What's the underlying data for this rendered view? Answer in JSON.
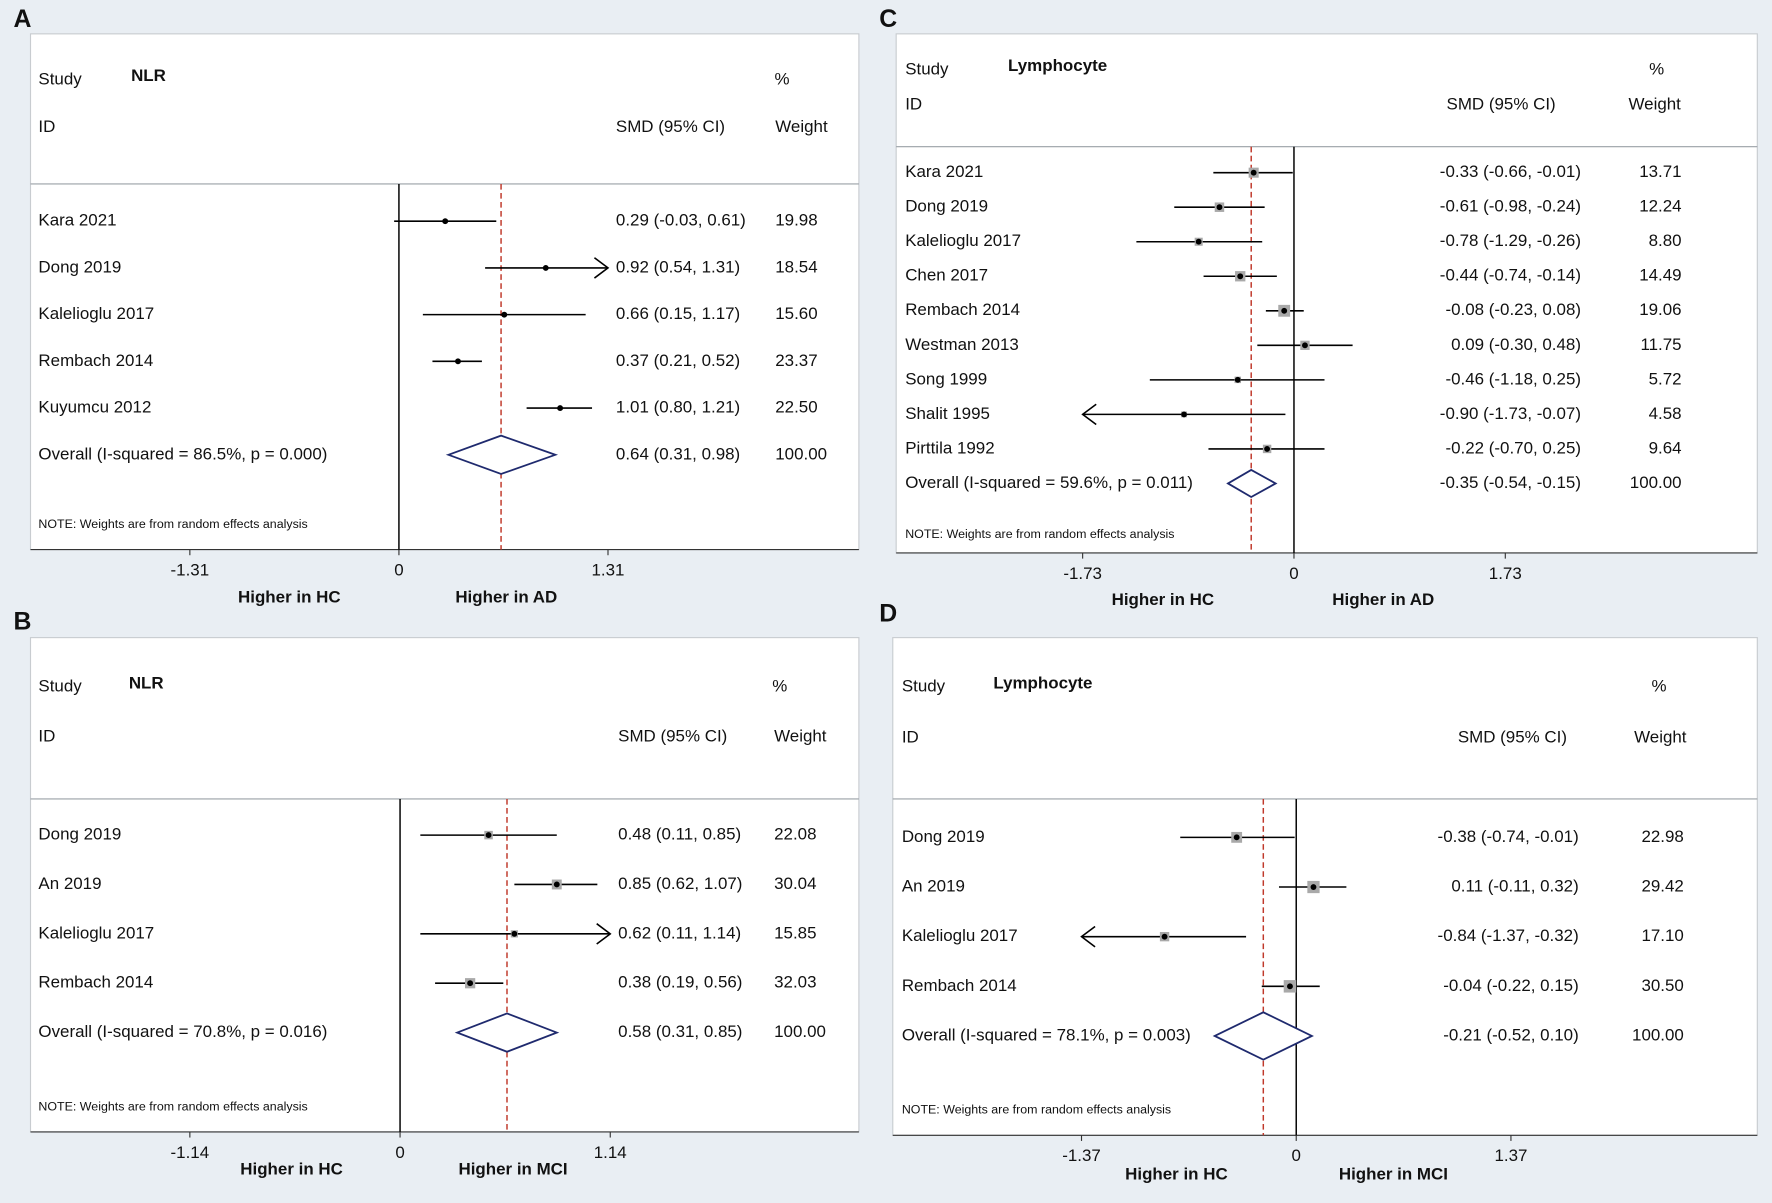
{
  "chart_data": [
    {
      "type": "forest",
      "panel": "A",
      "header": {
        "study": "Study",
        "measure": "NLR",
        "id": "ID",
        "effect": "SMD (95% CI)",
        "pct": "%",
        "weight": "Weight"
      },
      "studies": [
        "Kara 2021",
        "Dong 2019",
        "Kalelioglu 2017",
        "Rembach 2014",
        "Kuyumcu 2012"
      ],
      "smd": [
        0.29,
        0.92,
        0.66,
        0.37,
        1.01
      ],
      "lower": [
        -0.03,
        0.54,
        0.15,
        0.21,
        0.8
      ],
      "upper": [
        0.61,
        1.31,
        1.17,
        0.52,
        1.21
      ],
      "ci_labels": [
        "0.29 (-0.03, 0.61)",
        "0.92 (0.54, 1.31)",
        "0.66 (0.15, 1.17)",
        "0.37 (0.21, 0.52)",
        "1.01 (0.80, 1.21)"
      ],
      "weights": [
        19.98,
        18.54,
        15.6,
        23.37,
        22.5
      ],
      "weight_labels": [
        "19.98",
        "18.54",
        "15.60",
        "23.37",
        "22.50"
      ],
      "overall": {
        "label": "Overall  (I-squared = 86.5%, p = 0.000)",
        "smd": 0.64,
        "lower": 0.31,
        "upper": 0.98,
        "ci_label": "0.64 (0.31, 0.98)",
        "weight": 100,
        "weight_label": "100.00"
      },
      "note": "NOTE: Weights are from random effects analysis",
      "xlim": [
        -1.31,
        1.31
      ],
      "xticks": [
        -1.31,
        0,
        1.31
      ],
      "xlabels": [
        "Higher in HC",
        "Higher in AD"
      ],
      "colors": {
        "diamond": "#1f2a6e",
        "reference": "#c0392b",
        "box": "#a9a9a9"
      }
    },
    {
      "type": "forest",
      "panel": "B",
      "header": {
        "study": "Study",
        "measure": "NLR",
        "id": "ID",
        "effect": "SMD (95% CI)",
        "pct": "%",
        "weight": "Weight"
      },
      "studies": [
        "Dong 2019",
        "An 2019",
        "Kalelioglu 2017",
        "Rembach 2014"
      ],
      "smd": [
        0.48,
        0.85,
        0.62,
        0.38
      ],
      "lower": [
        0.11,
        0.62,
        0.11,
        0.19
      ],
      "upper": [
        0.85,
        1.07,
        1.14,
        0.56
      ],
      "ci_labels": [
        "0.48 (0.11, 0.85)",
        "0.85 (0.62, 1.07)",
        "0.62 (0.11, 1.14)",
        "0.38 (0.19, 0.56)"
      ],
      "weights": [
        22.08,
        30.04,
        15.85,
        32.03
      ],
      "weight_labels": [
        "22.08",
        "30.04",
        "15.85",
        "32.03"
      ],
      "overall": {
        "label": "Overall  (I-squared = 70.8%, p = 0.016)",
        "smd": 0.58,
        "lower": 0.31,
        "upper": 0.85,
        "ci_label": "0.58 (0.31, 0.85)",
        "weight": 100,
        "weight_label": "100.00"
      },
      "note": "NOTE: Weights are from random effects analysis",
      "xlim": [
        -1.14,
        1.14
      ],
      "xticks": [
        -1.14,
        0,
        1.14
      ],
      "xlabels": [
        "Higher in HC",
        "Higher in MCI"
      ],
      "colors": {
        "diamond": "#1f2a6e",
        "reference": "#c0392b",
        "box": "#a9a9a9"
      }
    },
    {
      "type": "forest",
      "panel": "C",
      "header": {
        "study": "Study",
        "measure": "Lymphocyte",
        "id": "ID",
        "effect": "SMD (95% CI)",
        "pct": "%",
        "weight": "Weight"
      },
      "studies": [
        "Kara 2021",
        "Dong 2019",
        "Kalelioglu 2017",
        "Chen 2017",
        "Rembach 2014",
        "Westman 2013",
        "Song 1999",
        "Shalit 1995",
        "Pirttila 1992"
      ],
      "smd": [
        -0.33,
        -0.61,
        -0.78,
        -0.44,
        -0.08,
        0.09,
        -0.46,
        -0.9,
        -0.22
      ],
      "lower": [
        -0.66,
        -0.98,
        -1.29,
        -0.74,
        -0.23,
        -0.3,
        -1.18,
        -1.73,
        -0.7
      ],
      "upper": [
        -0.01,
        -0.24,
        -0.26,
        -0.14,
        0.08,
        0.48,
        0.25,
        -0.07,
        0.25
      ],
      "ci_labels": [
        "-0.33 (-0.66, -0.01)",
        "-0.61 (-0.98, -0.24)",
        "-0.78 (-1.29, -0.26)",
        "-0.44 (-0.74, -0.14)",
        "-0.08 (-0.23, 0.08)",
        "0.09 (-0.30, 0.48)",
        "-0.46 (-1.18, 0.25)",
        "-0.90 (-1.73, -0.07)",
        "-0.22 (-0.70, 0.25)"
      ],
      "weights": [
        13.71,
        12.24,
        8.8,
        14.49,
        19.06,
        11.75,
        5.72,
        4.58,
        9.64
      ],
      "weight_labels": [
        "13.71",
        "12.24",
        "8.80",
        "14.49",
        "19.06",
        "11.75",
        "5.72",
        "4.58",
        "9.64"
      ],
      "overall": {
        "label": "Overall  (I-squared = 59.6%, p = 0.011)",
        "smd": -0.35,
        "lower": -0.54,
        "upper": -0.15,
        "ci_label": "-0.35 (-0.54, -0.15)",
        "weight": 100,
        "weight_label": "100.00"
      },
      "note": "NOTE: Weights are from random effects analysis",
      "xlim": [
        -1.73,
        1.73
      ],
      "xticks": [
        -1.73,
        0,
        1.73
      ],
      "xlabels": [
        "Higher in HC",
        "Higher in AD"
      ],
      "colors": {
        "diamond": "#1f2a6e",
        "reference": "#c0392b",
        "box": "#a9a9a9"
      }
    },
    {
      "type": "forest",
      "panel": "D",
      "header": {
        "study": "Study",
        "measure": "Lymphocyte",
        "id": "ID",
        "effect": "SMD (95% CI)",
        "pct": "%",
        "weight": "Weight"
      },
      "studies": [
        "Dong 2019",
        "An 2019",
        "Kalelioglu 2017",
        "Rembach 2014"
      ],
      "smd": [
        -0.38,
        0.11,
        -0.84,
        -0.04
      ],
      "lower": [
        -0.74,
        -0.11,
        -1.37,
        -0.22
      ],
      "upper": [
        -0.01,
        0.32,
        -0.32,
        0.15
      ],
      "ci_labels": [
        "-0.38 (-0.74, -0.01)",
        "0.11 (-0.11, 0.32)",
        "-0.84 (-1.37, -0.32)",
        "-0.04 (-0.22, 0.15)"
      ],
      "weights": [
        22.98,
        29.42,
        17.1,
        30.5
      ],
      "weight_labels": [
        "22.98",
        "29.42",
        "17.10",
        "30.50"
      ],
      "overall": {
        "label": "Overall  (I-squared = 78.1%, p = 0.003)",
        "smd": -0.21,
        "lower": -0.52,
        "upper": 0.1,
        "ci_label": "-0.21 (-0.52, 0.10)",
        "weight": 100,
        "weight_label": "100.00"
      },
      "note": "NOTE: Weights are from random effects analysis",
      "xlim": [
        -1.37,
        1.37
      ],
      "xticks": [
        -1.37,
        0,
        1.37
      ],
      "xlabels": [
        "Higher in HC",
        "Higher in MCI"
      ],
      "colors": {
        "diamond": "#1f2a6e",
        "reference": "#c0392b",
        "box": "#a9a9a9"
      }
    }
  ]
}
